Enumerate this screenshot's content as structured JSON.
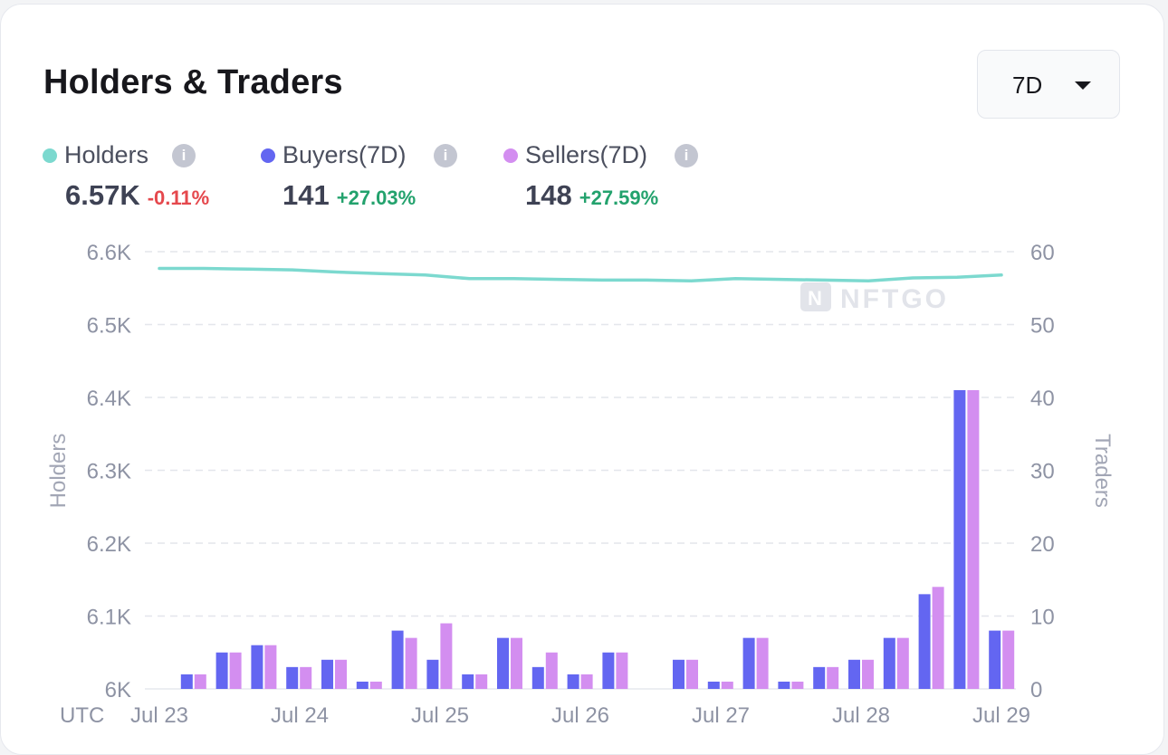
{
  "card": {
    "title": "Holders & Traders",
    "range": "7D"
  },
  "legend": [
    {
      "name": "Holders",
      "color": "#7cd9cf",
      "value": "6.57K",
      "change": "-0.11%",
      "change_dir": "neg"
    },
    {
      "name": "Buyers(7D)",
      "color": "#6366f1",
      "value": "141",
      "change": "+27.03%",
      "change_dir": "pos"
    },
    {
      "name": "Sellers(7D)",
      "color": "#d38ef0",
      "value": "148",
      "change": "+27.59%",
      "change_dir": "pos"
    }
  ],
  "info_icon": "info-icon",
  "watermark": "NFTGO",
  "chart_data": {
    "type": "bar",
    "y_left": {
      "label": "Holders",
      "min": 6000,
      "max": 6600,
      "ticks": [
        6000,
        6100,
        6200,
        6300,
        6400,
        6500,
        6600
      ],
      "tick_labels": [
        "6K",
        "6.1K",
        "6.2K",
        "6.3K",
        "6.4K",
        "6.5K",
        "6.6K"
      ]
    },
    "y_right": {
      "label": "Traders",
      "min": 0,
      "max": 60,
      "ticks": [
        0,
        10,
        20,
        30,
        40,
        50,
        60
      ],
      "tick_labels": [
        "0",
        "10",
        "20",
        "30",
        "40",
        "50",
        "60"
      ]
    },
    "x": {
      "timezone_label": "UTC",
      "tick_labels": [
        "Jul 23",
        "Jul 24",
        "Jul 25",
        "Jul 26",
        "Jul 27",
        "Jul 28",
        "Jul 29"
      ]
    },
    "grid": true,
    "buyers": [
      0,
      2,
      5,
      6,
      3,
      4,
      1,
      8,
      4,
      2,
      7,
      3,
      2,
      5,
      0,
      4,
      1,
      7,
      1,
      3,
      4,
      7,
      13,
      41,
      8
    ],
    "sellers": [
      0,
      2,
      5,
      6,
      3,
      4,
      1,
      7,
      9,
      2,
      7,
      5,
      2,
      5,
      0,
      4,
      1,
      7,
      1,
      3,
      4,
      7,
      14,
      41,
      8
    ],
    "holders": [
      6577,
      6577,
      6576,
      6575,
      6572,
      6570,
      6568,
      6563,
      6563,
      6562,
      6561,
      6561,
      6560,
      6563,
      6562,
      6561,
      6560,
      6564,
      6565,
      6568
    ]
  }
}
